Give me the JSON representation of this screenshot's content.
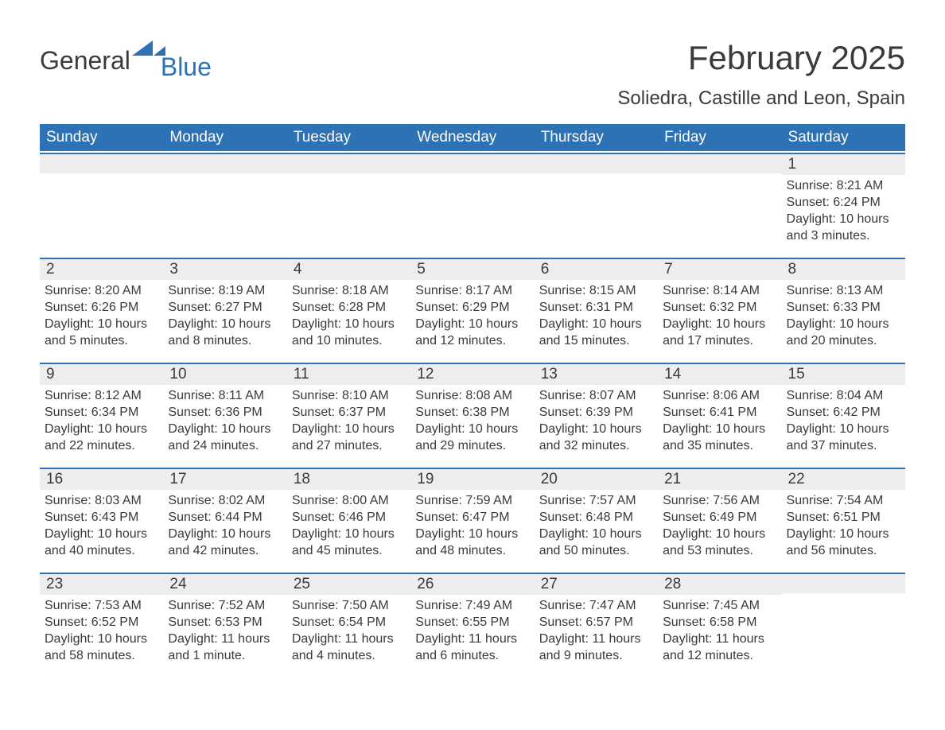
{
  "brand": {
    "word1": "General",
    "word2": "Blue",
    "accent_color": "#2d72b5"
  },
  "title": "February 2025",
  "location": "Soliedra, Castille and Leon, Spain",
  "colors": {
    "header_bg": "#2d72b5",
    "header_text": "#ffffff",
    "daynum_bg": "#ededed",
    "body_text": "#3a3a3a",
    "page_bg": "#ffffff",
    "week_border": "#2d72b5"
  },
  "typography": {
    "month_title_fontsize": 42,
    "location_fontsize": 24,
    "dayheader_fontsize": 19,
    "daynum_fontsize": 19,
    "detail_fontsize": 16
  },
  "day_headers": [
    "Sunday",
    "Monday",
    "Tuesday",
    "Wednesday",
    "Thursday",
    "Friday",
    "Saturday"
  ],
  "weeks": [
    [
      {
        "day": "",
        "sunrise": "",
        "sunset": "",
        "daylight": ""
      },
      {
        "day": "",
        "sunrise": "",
        "sunset": "",
        "daylight": ""
      },
      {
        "day": "",
        "sunrise": "",
        "sunset": "",
        "daylight": ""
      },
      {
        "day": "",
        "sunrise": "",
        "sunset": "",
        "daylight": ""
      },
      {
        "day": "",
        "sunrise": "",
        "sunset": "",
        "daylight": ""
      },
      {
        "day": "",
        "sunrise": "",
        "sunset": "",
        "daylight": ""
      },
      {
        "day": "1",
        "sunrise": "Sunrise: 8:21 AM",
        "sunset": "Sunset: 6:24 PM",
        "daylight": "Daylight: 10 hours and 3 minutes."
      }
    ],
    [
      {
        "day": "2",
        "sunrise": "Sunrise: 8:20 AM",
        "sunset": "Sunset: 6:26 PM",
        "daylight": "Daylight: 10 hours and 5 minutes."
      },
      {
        "day": "3",
        "sunrise": "Sunrise: 8:19 AM",
        "sunset": "Sunset: 6:27 PM",
        "daylight": "Daylight: 10 hours and 8 minutes."
      },
      {
        "day": "4",
        "sunrise": "Sunrise: 8:18 AM",
        "sunset": "Sunset: 6:28 PM",
        "daylight": "Daylight: 10 hours and 10 minutes."
      },
      {
        "day": "5",
        "sunrise": "Sunrise: 8:17 AM",
        "sunset": "Sunset: 6:29 PM",
        "daylight": "Daylight: 10 hours and 12 minutes."
      },
      {
        "day": "6",
        "sunrise": "Sunrise: 8:15 AM",
        "sunset": "Sunset: 6:31 PM",
        "daylight": "Daylight: 10 hours and 15 minutes."
      },
      {
        "day": "7",
        "sunrise": "Sunrise: 8:14 AM",
        "sunset": "Sunset: 6:32 PM",
        "daylight": "Daylight: 10 hours and 17 minutes."
      },
      {
        "day": "8",
        "sunrise": "Sunrise: 8:13 AM",
        "sunset": "Sunset: 6:33 PM",
        "daylight": "Daylight: 10 hours and 20 minutes."
      }
    ],
    [
      {
        "day": "9",
        "sunrise": "Sunrise: 8:12 AM",
        "sunset": "Sunset: 6:34 PM",
        "daylight": "Daylight: 10 hours and 22 minutes."
      },
      {
        "day": "10",
        "sunrise": "Sunrise: 8:11 AM",
        "sunset": "Sunset: 6:36 PM",
        "daylight": "Daylight: 10 hours and 24 minutes."
      },
      {
        "day": "11",
        "sunrise": "Sunrise: 8:10 AM",
        "sunset": "Sunset: 6:37 PM",
        "daylight": "Daylight: 10 hours and 27 minutes."
      },
      {
        "day": "12",
        "sunrise": "Sunrise: 8:08 AM",
        "sunset": "Sunset: 6:38 PM",
        "daylight": "Daylight: 10 hours and 29 minutes."
      },
      {
        "day": "13",
        "sunrise": "Sunrise: 8:07 AM",
        "sunset": "Sunset: 6:39 PM",
        "daylight": "Daylight: 10 hours and 32 minutes."
      },
      {
        "day": "14",
        "sunrise": "Sunrise: 8:06 AM",
        "sunset": "Sunset: 6:41 PM",
        "daylight": "Daylight: 10 hours and 35 minutes."
      },
      {
        "day": "15",
        "sunrise": "Sunrise: 8:04 AM",
        "sunset": "Sunset: 6:42 PM",
        "daylight": "Daylight: 10 hours and 37 minutes."
      }
    ],
    [
      {
        "day": "16",
        "sunrise": "Sunrise: 8:03 AM",
        "sunset": "Sunset: 6:43 PM",
        "daylight": "Daylight: 10 hours and 40 minutes."
      },
      {
        "day": "17",
        "sunrise": "Sunrise: 8:02 AM",
        "sunset": "Sunset: 6:44 PM",
        "daylight": "Daylight: 10 hours and 42 minutes."
      },
      {
        "day": "18",
        "sunrise": "Sunrise: 8:00 AM",
        "sunset": "Sunset: 6:46 PM",
        "daylight": "Daylight: 10 hours and 45 minutes."
      },
      {
        "day": "19",
        "sunrise": "Sunrise: 7:59 AM",
        "sunset": "Sunset: 6:47 PM",
        "daylight": "Daylight: 10 hours and 48 minutes."
      },
      {
        "day": "20",
        "sunrise": "Sunrise: 7:57 AM",
        "sunset": "Sunset: 6:48 PM",
        "daylight": "Daylight: 10 hours and 50 minutes."
      },
      {
        "day": "21",
        "sunrise": "Sunrise: 7:56 AM",
        "sunset": "Sunset: 6:49 PM",
        "daylight": "Daylight: 10 hours and 53 minutes."
      },
      {
        "day": "22",
        "sunrise": "Sunrise: 7:54 AM",
        "sunset": "Sunset: 6:51 PM",
        "daylight": "Daylight: 10 hours and 56 minutes."
      }
    ],
    [
      {
        "day": "23",
        "sunrise": "Sunrise: 7:53 AM",
        "sunset": "Sunset: 6:52 PM",
        "daylight": "Daylight: 10 hours and 58 minutes."
      },
      {
        "day": "24",
        "sunrise": "Sunrise: 7:52 AM",
        "sunset": "Sunset: 6:53 PM",
        "daylight": "Daylight: 11 hours and 1 minute."
      },
      {
        "day": "25",
        "sunrise": "Sunrise: 7:50 AM",
        "sunset": "Sunset: 6:54 PM",
        "daylight": "Daylight: 11 hours and 4 minutes."
      },
      {
        "day": "26",
        "sunrise": "Sunrise: 7:49 AM",
        "sunset": "Sunset: 6:55 PM",
        "daylight": "Daylight: 11 hours and 6 minutes."
      },
      {
        "day": "27",
        "sunrise": "Sunrise: 7:47 AM",
        "sunset": "Sunset: 6:57 PM",
        "daylight": "Daylight: 11 hours and 9 minutes."
      },
      {
        "day": "28",
        "sunrise": "Sunrise: 7:45 AM",
        "sunset": "Sunset: 6:58 PM",
        "daylight": "Daylight: 11 hours and 12 minutes."
      },
      {
        "day": "",
        "sunrise": "",
        "sunset": "",
        "daylight": ""
      }
    ]
  ]
}
